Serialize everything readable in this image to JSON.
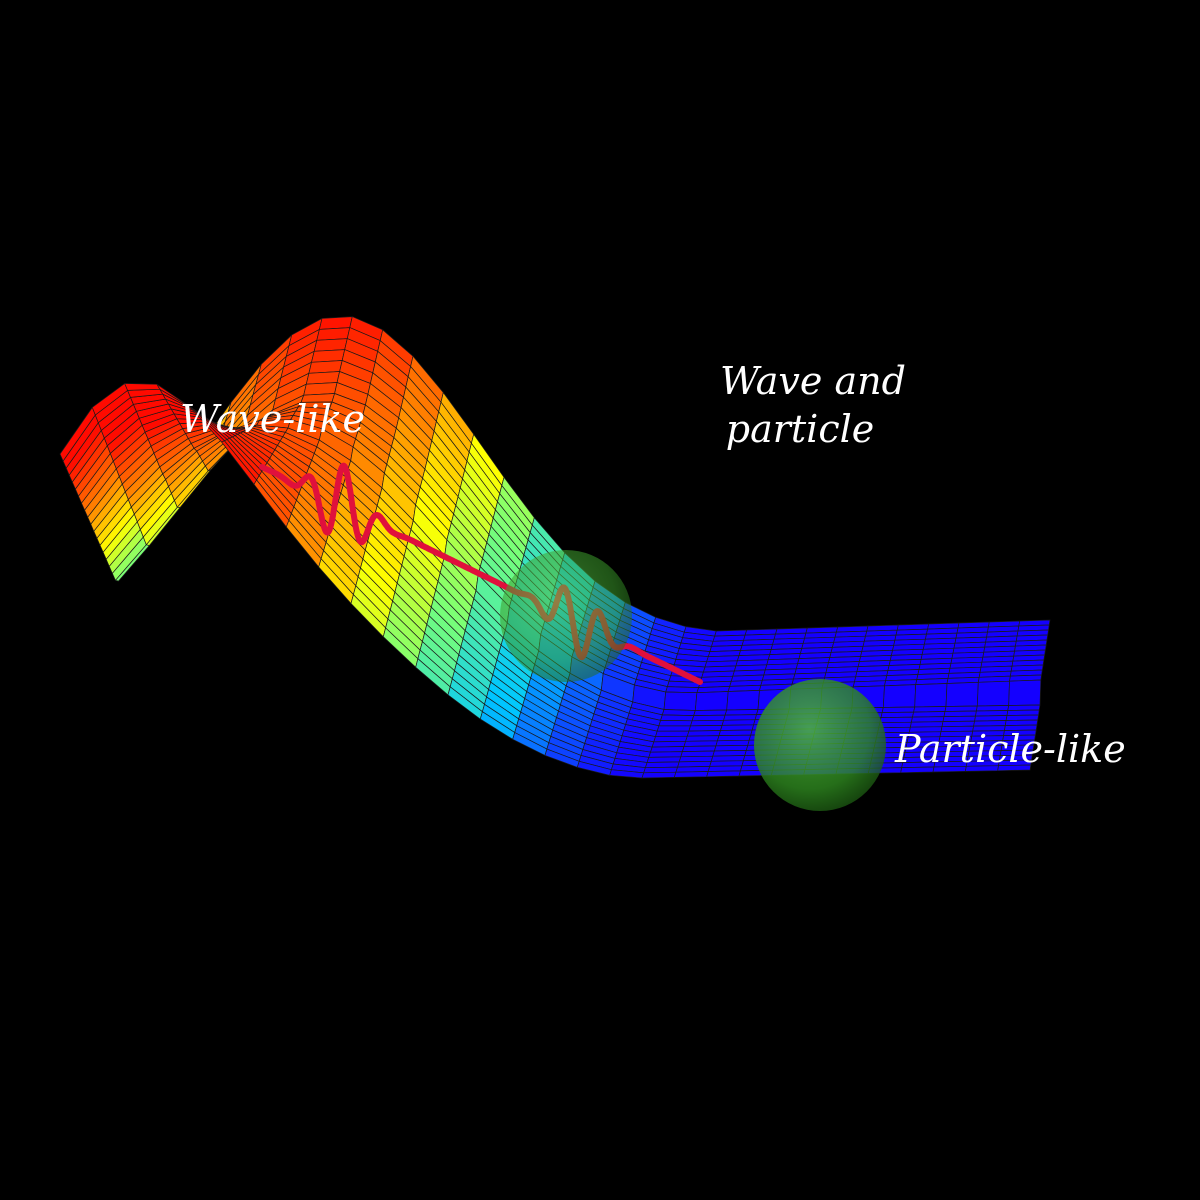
{
  "labels": {
    "wave_like": "Wave-like",
    "wave_and_particle_line1": "Wave and",
    "wave_and_particle_line2": "particle",
    "particle_like": "Particle-like"
  },
  "colors": {
    "background": "#000000",
    "surface_colormap": [
      "#0000ff",
      "#00c8ff",
      "#80ff80",
      "#ffff00",
      "#ff8000",
      "#ff0000"
    ],
    "wave_packet": "#e0103c",
    "particle_sphere": "#2f8f1f",
    "label_text": "#ffffff",
    "mesh_lines": "#1a1a1a"
  },
  "icons": {
    "surface": "potential-surface-mesh",
    "wave": "wave-packet-icon",
    "particle": "particle-sphere-icon"
  }
}
